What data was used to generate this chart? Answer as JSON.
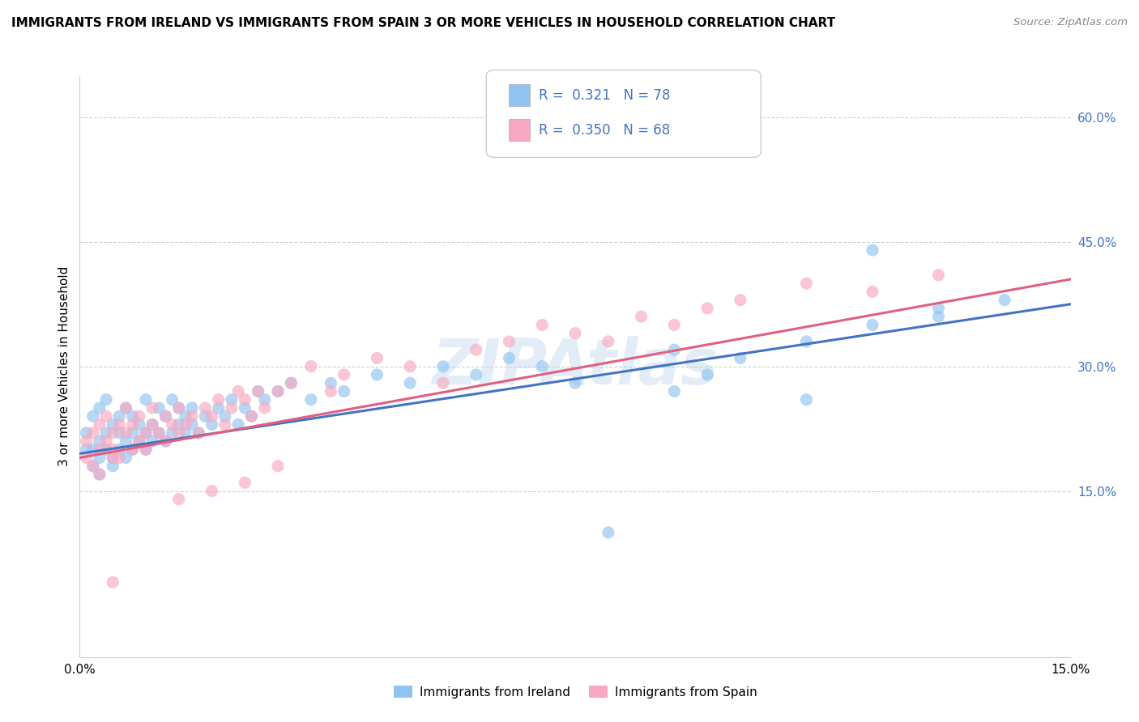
{
  "title": "IMMIGRANTS FROM IRELAND VS IMMIGRANTS FROM SPAIN 3 OR MORE VEHICLES IN HOUSEHOLD CORRELATION CHART",
  "source": "Source: ZipAtlas.com",
  "ylabel": "3 or more Vehicles in Household",
  "legend_ireland": "Immigrants from Ireland",
  "legend_spain": "Immigrants from Spain",
  "R_ireland": 0.321,
  "N_ireland": 78,
  "R_spain": 0.35,
  "N_spain": 68,
  "xlim": [
    0.0,
    0.15
  ],
  "ylim": [
    -0.05,
    0.65
  ],
  "color_ireland": "#90c4f0",
  "color_spain": "#f8a8c0",
  "color_ireland_line": "#4472c4",
  "color_spain_line": "#e06080",
  "watermark": "ZIPAtlas",
  "ireland_x": [
    0.001,
    0.001,
    0.002,
    0.002,
    0.002,
    0.003,
    0.003,
    0.003,
    0.003,
    0.004,
    0.004,
    0.004,
    0.005,
    0.005,
    0.005,
    0.006,
    0.006,
    0.006,
    0.007,
    0.007,
    0.007,
    0.008,
    0.008,
    0.008,
    0.009,
    0.009,
    0.01,
    0.01,
    0.01,
    0.011,
    0.011,
    0.012,
    0.012,
    0.013,
    0.013,
    0.014,
    0.014,
    0.015,
    0.015,
    0.016,
    0.016,
    0.017,
    0.017,
    0.018,
    0.019,
    0.02,
    0.021,
    0.022,
    0.023,
    0.024,
    0.025,
    0.026,
    0.027,
    0.028,
    0.03,
    0.032,
    0.035,
    0.038,
    0.04,
    0.045,
    0.05,
    0.055,
    0.06,
    0.065,
    0.07,
    0.075,
    0.08,
    0.09,
    0.1,
    0.11,
    0.12,
    0.13,
    0.14,
    0.12,
    0.13,
    0.11,
    0.09,
    0.095
  ],
  "ireland_y": [
    0.2,
    0.22,
    0.18,
    0.24,
    0.2,
    0.19,
    0.21,
    0.25,
    0.17,
    0.22,
    0.2,
    0.26,
    0.18,
    0.23,
    0.19,
    0.22,
    0.24,
    0.2,
    0.21,
    0.25,
    0.19,
    0.22,
    0.2,
    0.24,
    0.21,
    0.23,
    0.22,
    0.2,
    0.26,
    0.21,
    0.23,
    0.22,
    0.25,
    0.21,
    0.24,
    0.22,
    0.26,
    0.23,
    0.25,
    0.22,
    0.24,
    0.23,
    0.25,
    0.22,
    0.24,
    0.23,
    0.25,
    0.24,
    0.26,
    0.23,
    0.25,
    0.24,
    0.27,
    0.26,
    0.27,
    0.28,
    0.26,
    0.28,
    0.27,
    0.29,
    0.28,
    0.3,
    0.29,
    0.31,
    0.3,
    0.28,
    0.1,
    0.27,
    0.31,
    0.33,
    0.35,
    0.36,
    0.38,
    0.44,
    0.37,
    0.26,
    0.32,
    0.29
  ],
  "spain_x": [
    0.001,
    0.001,
    0.002,
    0.002,
    0.003,
    0.003,
    0.003,
    0.004,
    0.004,
    0.005,
    0.005,
    0.005,
    0.006,
    0.006,
    0.007,
    0.007,
    0.008,
    0.008,
    0.009,
    0.009,
    0.01,
    0.01,
    0.011,
    0.011,
    0.012,
    0.013,
    0.013,
    0.014,
    0.015,
    0.015,
    0.016,
    0.017,
    0.018,
    0.019,
    0.02,
    0.021,
    0.022,
    0.023,
    0.024,
    0.025,
    0.026,
    0.027,
    0.028,
    0.03,
    0.032,
    0.035,
    0.038,
    0.04,
    0.045,
    0.05,
    0.055,
    0.06,
    0.065,
    0.07,
    0.075,
    0.08,
    0.085,
    0.09,
    0.095,
    0.1,
    0.11,
    0.12,
    0.13,
    0.025,
    0.03,
    0.02,
    0.015,
    0.005
  ],
  "spain_y": [
    0.21,
    0.19,
    0.22,
    0.18,
    0.2,
    0.23,
    0.17,
    0.21,
    0.24,
    0.19,
    0.22,
    0.2,
    0.23,
    0.19,
    0.22,
    0.25,
    0.2,
    0.23,
    0.21,
    0.24,
    0.22,
    0.2,
    0.23,
    0.25,
    0.22,
    0.21,
    0.24,
    0.23,
    0.22,
    0.25,
    0.23,
    0.24,
    0.22,
    0.25,
    0.24,
    0.26,
    0.23,
    0.25,
    0.27,
    0.26,
    0.24,
    0.27,
    0.25,
    0.27,
    0.28,
    0.3,
    0.27,
    0.29,
    0.31,
    0.3,
    0.28,
    0.32,
    0.33,
    0.35,
    0.34,
    0.33,
    0.36,
    0.35,
    0.37,
    0.38,
    0.4,
    0.39,
    0.41,
    0.16,
    0.18,
    0.15,
    0.14,
    0.04
  ],
  "line_ireland_x0": 0.0,
  "line_ireland_y0": 0.195,
  "line_ireland_x1": 0.15,
  "line_ireland_y1": 0.375,
  "line_spain_x0": 0.0,
  "line_spain_y0": 0.19,
  "line_spain_x1": 0.15,
  "line_spain_y1": 0.405
}
